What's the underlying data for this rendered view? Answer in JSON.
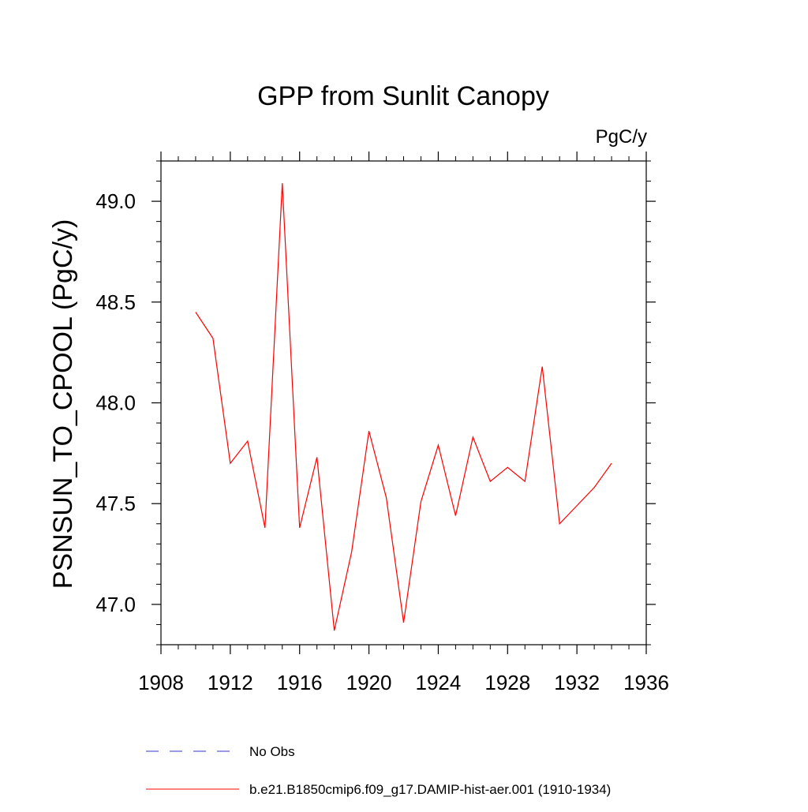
{
  "chart_data": {
    "type": "line",
    "title": "GPP from Sunlit Canopy",
    "units_label": "PgC/y",
    "xlabel": "",
    "ylabel": "PSNSUN_TO_CPOOL  (PgC/y)",
    "xlim": [
      1908,
      1936
    ],
    "ylim": [
      46.8,
      49.2
    ],
    "xticks": [
      1908,
      1912,
      1916,
      1920,
      1924,
      1928,
      1932,
      1936
    ],
    "xtick_labels": [
      "1908",
      "1912",
      "1916",
      "1920",
      "1924",
      "1928",
      "1932",
      "1936"
    ],
    "yticks": [
      47.0,
      47.5,
      48.0,
      48.5,
      49.0
    ],
    "ytick_labels": [
      "47.0",
      "47.5",
      "48.0",
      "48.5",
      "49.0"
    ],
    "grid": false,
    "legend_position": "bottom",
    "legend": [
      {
        "label": "No Obs",
        "color": "#3333cc",
        "style": "dashed"
      },
      {
        "label": "b.e21.B1850cmip6.f09_g17.DAMIP-hist-aer.001 (1910-1934)",
        "color": "#ff0000",
        "style": "solid"
      }
    ],
    "series": [
      {
        "name": "b.e21.B1850cmip6.f09_g17.DAMIP-hist-aer.001 (1910-1934)",
        "color": "#ff0000",
        "x": [
          1910,
          1911,
          1912,
          1913,
          1914,
          1915,
          1916,
          1917,
          1918,
          1919,
          1920,
          1921,
          1922,
          1923,
          1924,
          1925,
          1926,
          1927,
          1928,
          1929,
          1930,
          1931,
          1932,
          1933,
          1934
        ],
        "y": [
          48.45,
          48.32,
          47.7,
          47.81,
          47.38,
          49.09,
          47.38,
          47.73,
          46.87,
          47.26,
          47.86,
          47.53,
          46.91,
          47.51,
          47.79,
          47.44,
          47.83,
          47.61,
          47.68,
          47.61,
          48.18,
          47.4,
          47.49,
          47.58,
          47.7
        ]
      }
    ]
  }
}
